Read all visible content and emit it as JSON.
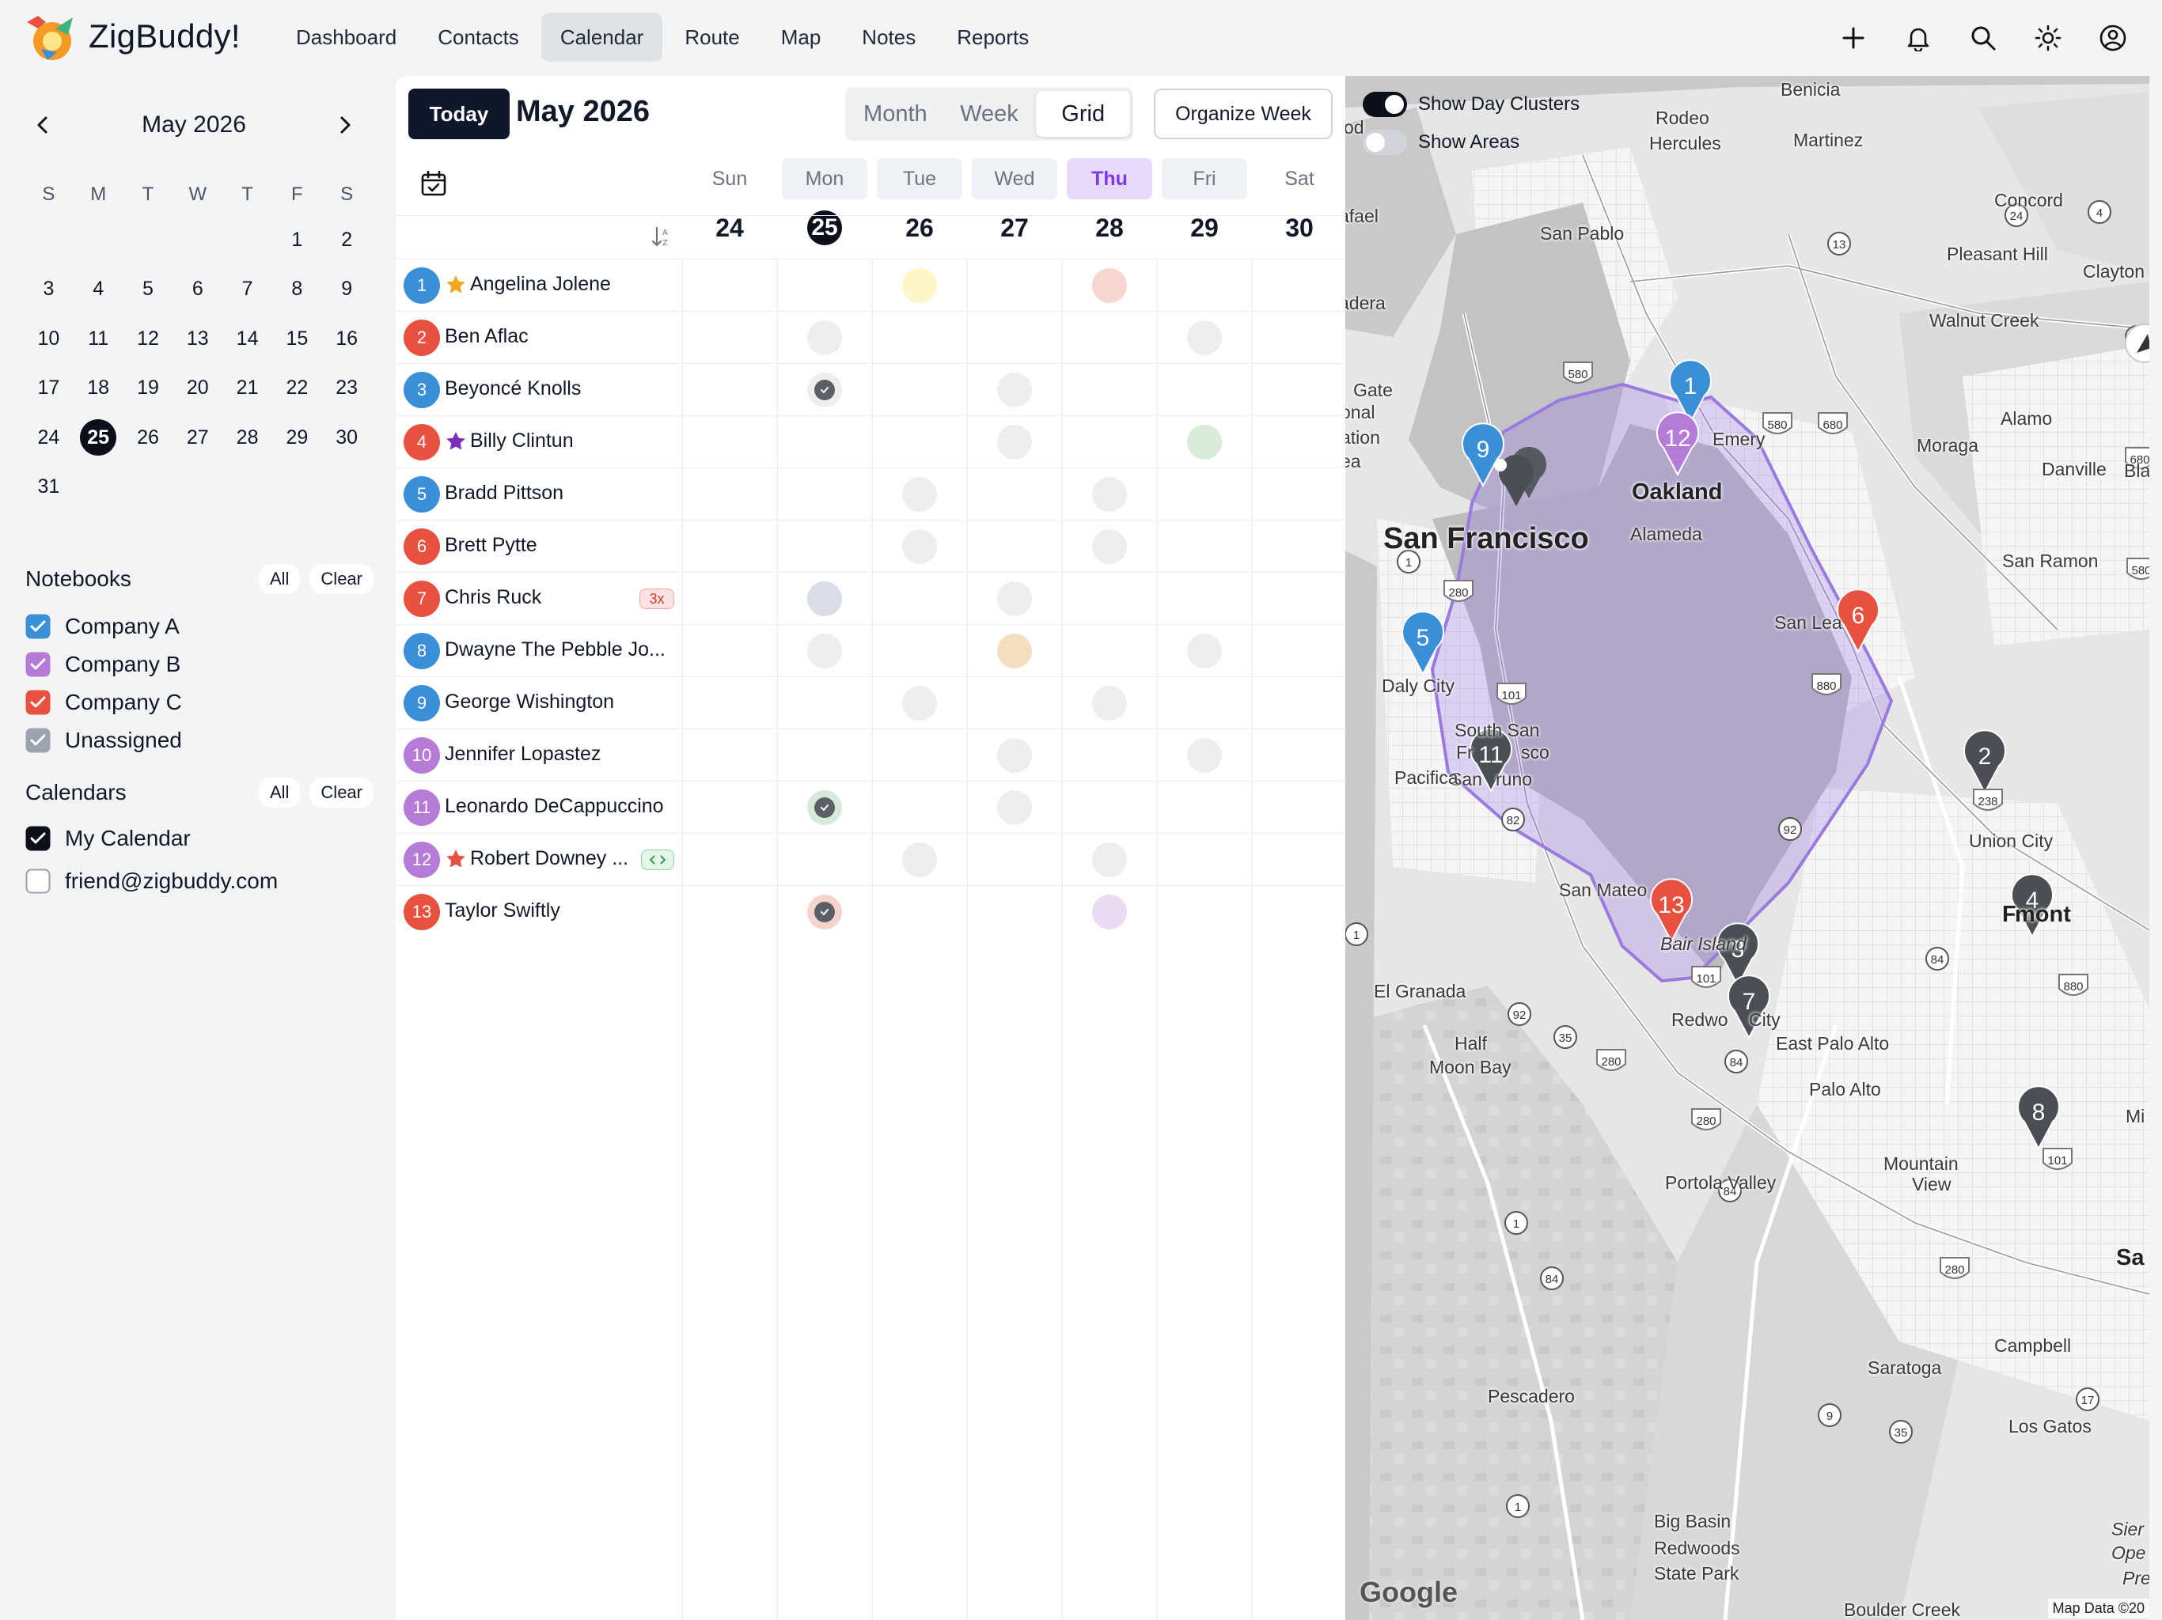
{
  "app": {
    "brand": "ZigBuddy!"
  },
  "nav": [
    {
      "label": "Dashboard",
      "active": false
    },
    {
      "label": "Contacts",
      "active": false
    },
    {
      "label": "Calendar",
      "active": true
    },
    {
      "label": "Route",
      "active": false
    },
    {
      "label": "Map",
      "active": false
    },
    {
      "label": "Notes",
      "active": false
    },
    {
      "label": "Reports",
      "active": false
    }
  ],
  "top_actions": [
    "plus-icon",
    "bell-icon",
    "search-icon",
    "sun-icon",
    "account-icon"
  ],
  "mini_calendar": {
    "title": "May 2026",
    "dow": [
      "S",
      "M",
      "T",
      "W",
      "T",
      "F",
      "S"
    ],
    "lead_blanks": 5,
    "days": 31,
    "today": 25
  },
  "notebooks": {
    "title": "Notebooks",
    "all": "All",
    "clear": "Clear",
    "items": [
      {
        "label": "Company A",
        "color": "#3b8fd6",
        "checked": true
      },
      {
        "label": "Company B",
        "color": "#b57bd6",
        "checked": true
      },
      {
        "label": "Company C",
        "color": "#e8503f",
        "checked": true
      },
      {
        "label": "Unassigned",
        "color": "#9ca3af",
        "checked": true
      }
    ]
  },
  "calendars": {
    "title": "Calendars",
    "all": "All",
    "clear": "Clear",
    "items": [
      {
        "label": "My Calendar",
        "checked": true,
        "color": "#0b0f19"
      },
      {
        "label": "friend@zigbuddy.com",
        "checked": false,
        "color": "#ffffff"
      }
    ]
  },
  "panel": {
    "today_label": "Today",
    "title": "May 2026",
    "views": [
      {
        "label": "Month",
        "active": false
      },
      {
        "label": "Week",
        "active": false
      },
      {
        "label": "Grid",
        "active": true
      }
    ],
    "organize_label": "Organize Week",
    "week_days": [
      {
        "dow": "Sun",
        "date": "24",
        "style": "plain"
      },
      {
        "dow": "Mon",
        "date": "25",
        "style": "tint",
        "today": true
      },
      {
        "dow": "Tue",
        "date": "26",
        "style": "tint"
      },
      {
        "dow": "Wed",
        "date": "27",
        "style": "tint"
      },
      {
        "dow": "Thu",
        "date": "28",
        "style": "thu"
      },
      {
        "dow": "Fri",
        "date": "29",
        "style": "tint"
      },
      {
        "dow": "Sat",
        "date": "30",
        "style": "plain"
      }
    ]
  },
  "contacts": [
    {
      "num": "1",
      "name": "Angelina Jolene",
      "color": "#3b8fd6",
      "star": "#f5a623",
      "cells": {
        "2": "#fff6c7",
        "4": "#f7d6cf"
      }
    },
    {
      "num": "2",
      "name": "Ben Aflac",
      "color": "#e8503f",
      "cells": {
        "1": "#eeeeee",
        "5": "#eeeeee"
      }
    },
    {
      "num": "3",
      "name": "Beyoncé Knolls",
      "color": "#3b8fd6",
      "cells": {
        "1": "check",
        "3": "#eeeeee"
      }
    },
    {
      "num": "4",
      "name": "Billy Clintun",
      "color": "#e8503f",
      "star": "#7b2fbf",
      "cells": {
        "3": "#eeeeee",
        "5": "#d9ebd9"
      }
    },
    {
      "num": "5",
      "name": "Bradd Pittson",
      "color": "#3b8fd6",
      "cells": {
        "2": "#eeeeee",
        "4": "#eeeeee"
      }
    },
    {
      "num": "6",
      "name": "Brett Pytte",
      "color": "#e8503f",
      "cells": {
        "2": "#eeeeee",
        "4": "#eeeeee"
      }
    },
    {
      "num": "7",
      "name": "Chris Ruck",
      "color": "#e8503f",
      "badge": "3x",
      "cells": {
        "1": "#d9dde7",
        "3": "#eeeeee"
      }
    },
    {
      "num": "8",
      "name": "Dwayne The Pebble Jo...",
      "color": "#3b8fd6",
      "cells": {
        "1": "#eeeeee",
        "3": "#f3dfbf",
        "5": "#eeeeee"
      }
    },
    {
      "num": "9",
      "name": "George Wishington",
      "color": "#3b8fd6",
      "cells": {
        "2": "#eeeeee",
        "4": "#eeeeee"
      }
    },
    {
      "num": "10",
      "name": "Jennifer Lopastez",
      "color": "#b57bd6",
      "cells": {
        "3": "#eeeeee",
        "5": "#eeeeee"
      }
    },
    {
      "num": "11",
      "name": "Leonardo DeCappuccino",
      "color": "#b57bd6",
      "cells": {
        "1": "check-green",
        "3": "#eeeeee"
      }
    },
    {
      "num": "12",
      "name": "Robert Downey ...",
      "color": "#b57bd6",
      "star": "#e8503f",
      "badge": "code",
      "cells": {
        "2": "#eeeeee",
        "4": "#eeeeee"
      }
    },
    {
      "num": "13",
      "name": "Taylor Swiftly",
      "color": "#e8503f",
      "cells": {
        "1": "check-red",
        "4": "#eadbf2"
      }
    }
  ],
  "map": {
    "toggles": [
      {
        "label": "Show Day Clusters",
        "on": true
      },
      {
        "label": "Show Areas",
        "on": false
      }
    ],
    "labels": [
      {
        "text": "Benicia",
        "cls": ""
      },
      {
        "text": "Rodeo",
        "cls": ""
      },
      {
        "text": "Hercules",
        "cls": ""
      },
      {
        "text": "Martinez",
        "cls": ""
      },
      {
        "text": "Concord",
        "cls": ""
      },
      {
        "text": "Pleasant Hill",
        "cls": ""
      },
      {
        "text": "Clayton",
        "cls": ""
      },
      {
        "text": "San Pablo",
        "cls": ""
      },
      {
        "text": "Walnut Creek",
        "cls": ""
      },
      {
        "text": "Alamo",
        "cls": ""
      },
      {
        "text": "Moraga",
        "cls": ""
      },
      {
        "text": "Danville",
        "cls": ""
      },
      {
        "text": "Black",
        "cls": ""
      },
      {
        "text": "Oakland",
        "cls": "mid"
      },
      {
        "text": "Alameda",
        "cls": ""
      },
      {
        "text": "San Francisco",
        "cls": "big"
      },
      {
        "text": "San Ramon",
        "cls": ""
      },
      {
        "text": "San Lea",
        "cls": ""
      },
      {
        "text": "Daly City",
        "cls": ""
      },
      {
        "text": "South San",
        "cls": ""
      },
      {
        "text": "Fr",
        "cls": ""
      },
      {
        "text": "sco",
        "cls": ""
      },
      {
        "text": "San",
        "cls": ""
      },
      {
        "text": "runo",
        "cls": ""
      },
      {
        "text": "Pacifica",
        "cls": ""
      },
      {
        "text": "Union City",
        "cls": ""
      },
      {
        "text": "F",
        "cls": "mid"
      },
      {
        "text": "mont",
        "cls": "mid"
      },
      {
        "text": "San Mateo",
        "cls": ""
      },
      {
        "text": "Bair Island",
        "cls": "it"
      },
      {
        "text": "El Granada",
        "cls": ""
      },
      {
        "text": "Redwo",
        "cls": ""
      },
      {
        "text": "City",
        "cls": ""
      },
      {
        "text": "East Palo Alto",
        "cls": ""
      },
      {
        "text": "Half",
        "cls": ""
      },
      {
        "text": "Moon Bay",
        "cls": ""
      },
      {
        "text": "Palo Alto",
        "cls": ""
      },
      {
        "text": "Mountain",
        "cls": ""
      },
      {
        "text": "View",
        "cls": ""
      },
      {
        "text": "Portola Valley",
        "cls": ""
      },
      {
        "text": "Sa",
        "cls": "mid"
      },
      {
        "text": "Campbell",
        "cls": ""
      },
      {
        "text": "Saratoga",
        "cls": ""
      },
      {
        "text": "Los Gatos",
        "cls": ""
      },
      {
        "text": "Pescadero",
        "cls": ""
      },
      {
        "text": "Big Basin",
        "cls": ""
      },
      {
        "text": "Redwoods",
        "cls": ""
      },
      {
        "text": "State Park",
        "cls": ""
      },
      {
        "text": "Boulder Creek",
        "cls": ""
      },
      {
        "text": "Mi",
        "cls": ""
      },
      {
        "text": "od",
        "cls": ""
      },
      {
        "text": "afael",
        "cls": ""
      },
      {
        "text": "adera",
        "cls": ""
      },
      {
        "text": "Gate",
        "cls": ""
      },
      {
        "text": "onal",
        "cls": ""
      },
      {
        "text": "ation",
        "cls": ""
      },
      {
        "text": "ea",
        "cls": ""
      },
      {
        "text": "Emery",
        "cls": ""
      },
      {
        "text": "Sier",
        "cls": "it"
      },
      {
        "text": "Ope",
        "cls": "it"
      },
      {
        "text": "Pre",
        "cls": "it"
      }
    ],
    "pins": [
      "1",
      "9",
      "12",
      "6",
      "5",
      "11",
      "2",
      "4",
      "13",
      "3",
      "7",
      "8"
    ],
    "shields": [
      "580",
      "24",
      "680",
      "4",
      "4",
      "13",
      "580",
      "1",
      "280",
      "101",
      "880",
      "238",
      "92",
      "82",
      "680",
      "580",
      "92",
      "35",
      "1",
      "280",
      "101",
      "84",
      "84",
      "880",
      "280",
      "101",
      "84",
      "1",
      "84",
      "280",
      "17",
      "9",
      "35",
      "1"
    ],
    "google": "Google",
    "attribution": "Map Data ©20"
  }
}
